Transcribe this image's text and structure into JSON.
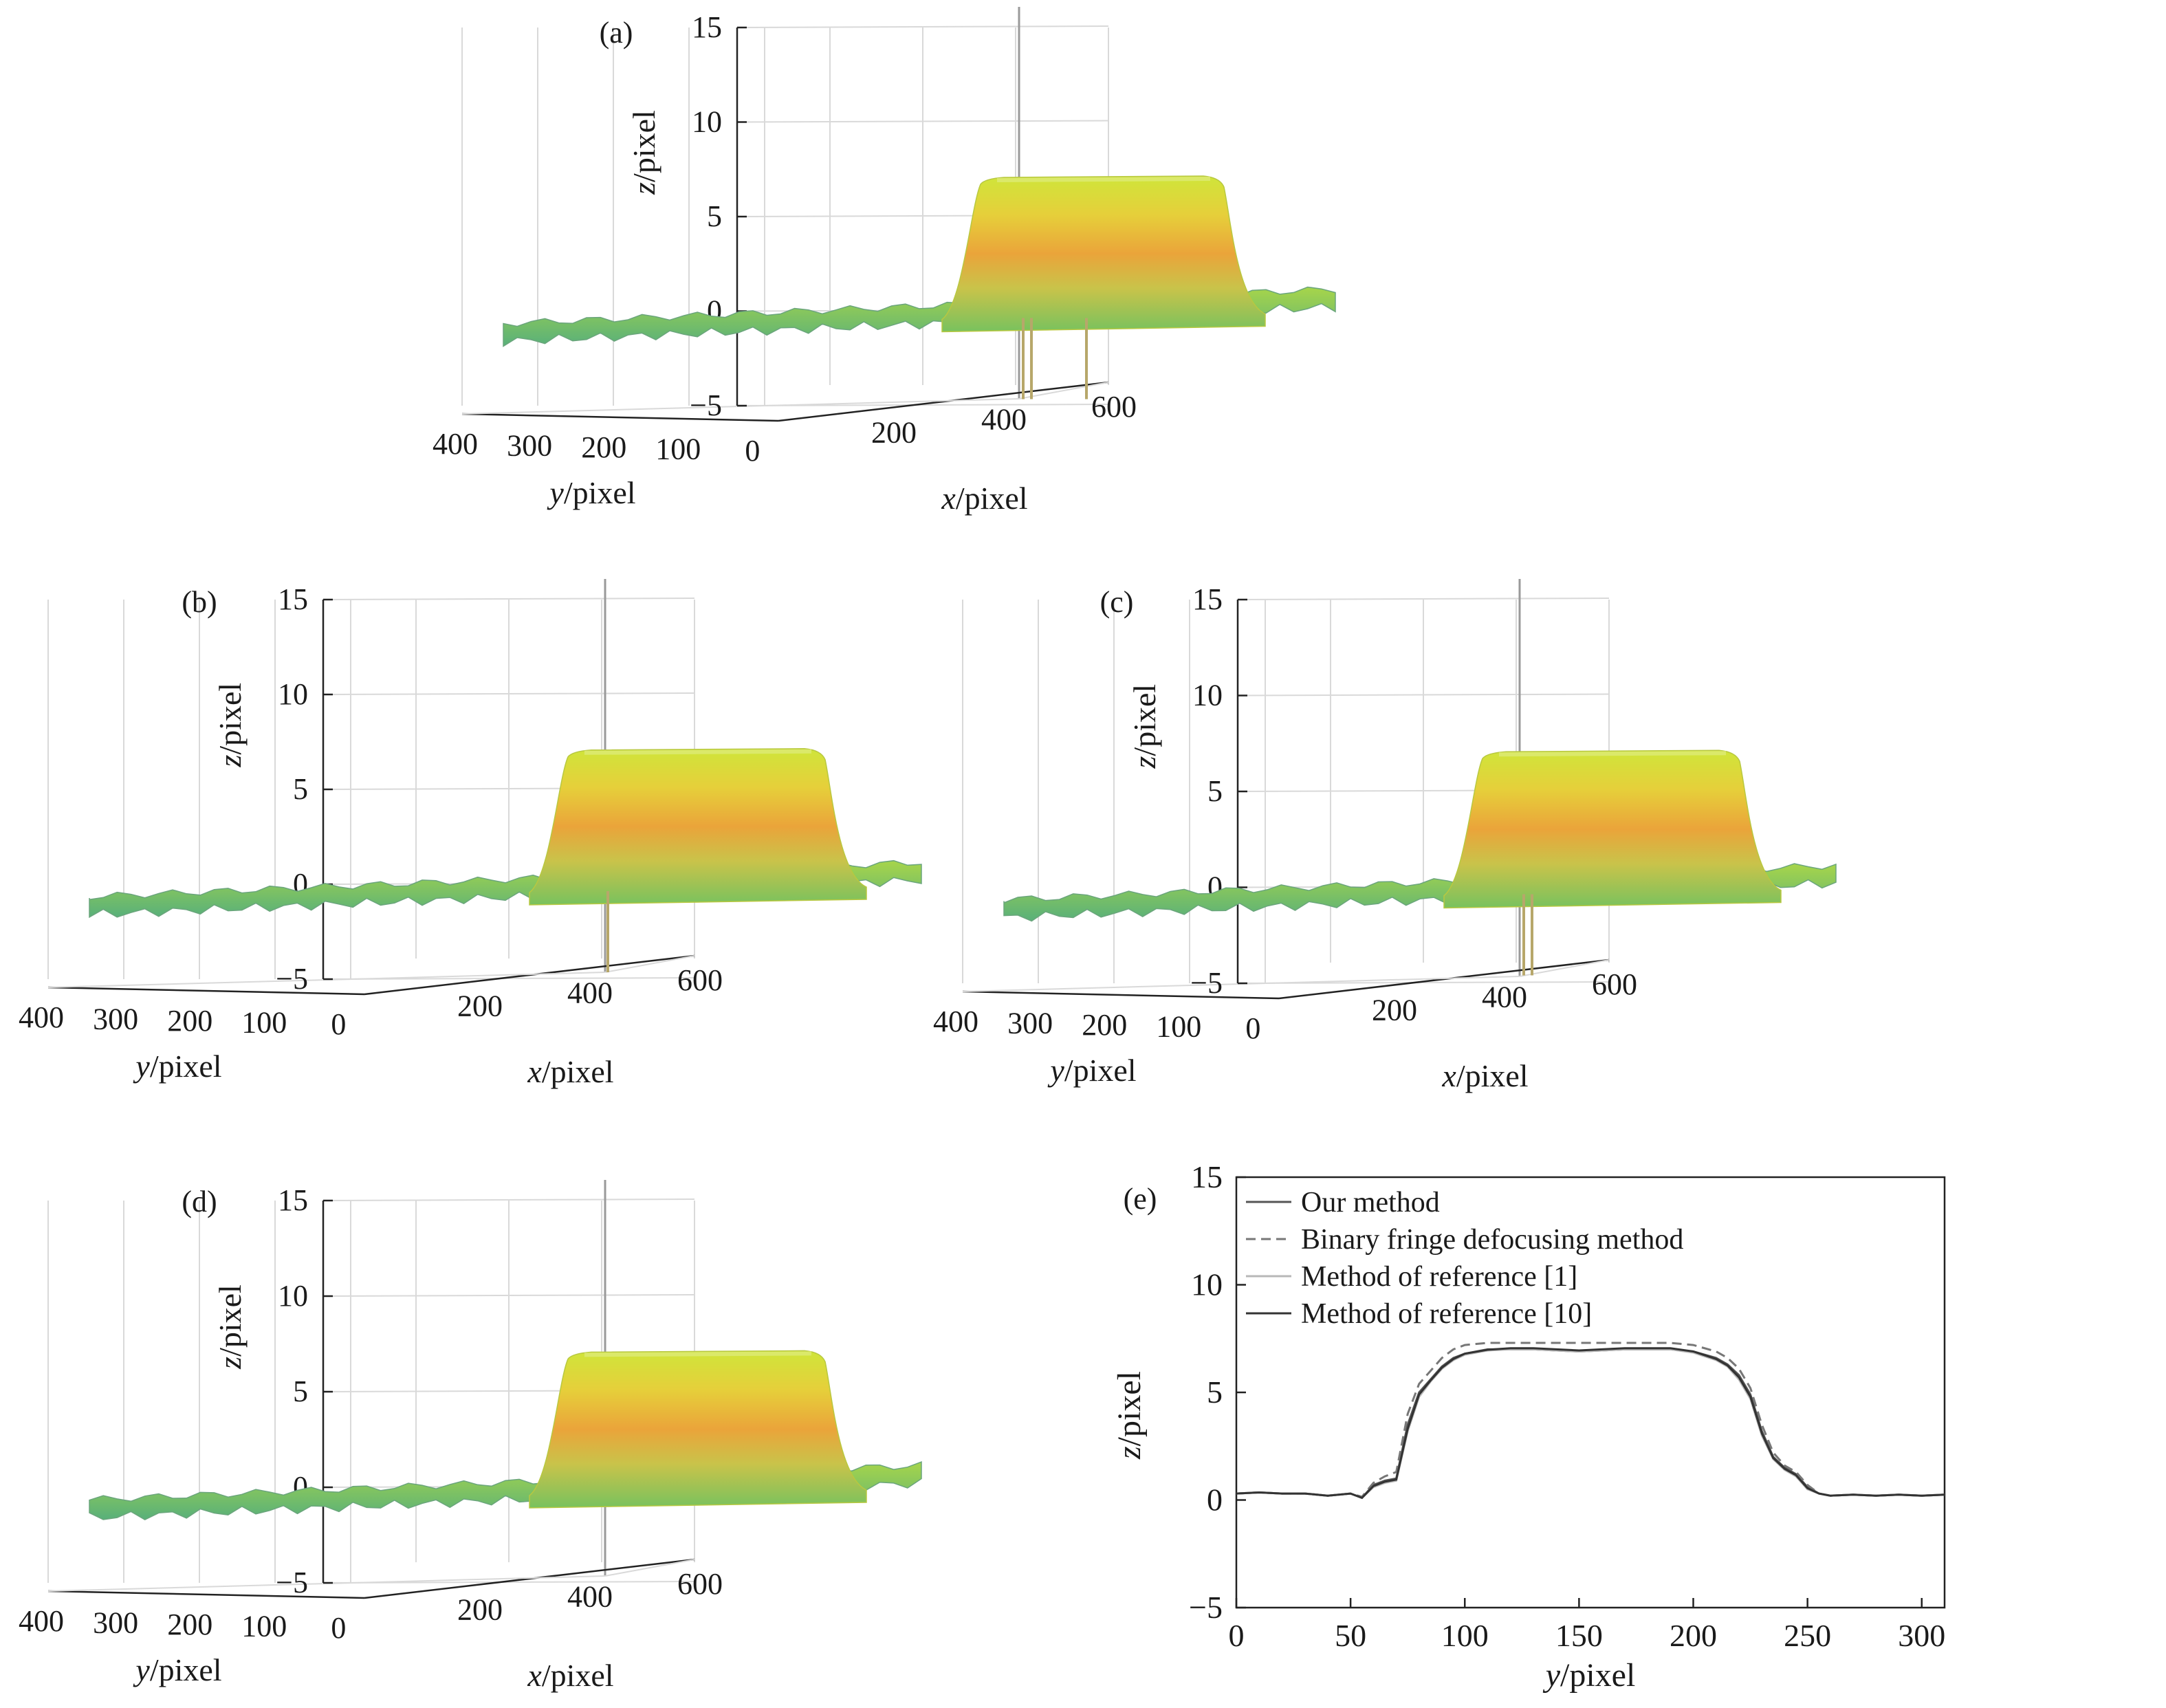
{
  "figure": {
    "colors": {
      "axis": "#222222",
      "grid": "#d9d9d9",
      "surface_top": "#c6e13a",
      "surface_mid": "#e9a33a",
      "surface_low": "#8fcf54",
      "surface_base": "#6fbf70"
    }
  },
  "chart_data": [
    {
      "panel": "(a)",
      "type": "surface",
      "zlabel": "z/pixel",
      "ylabel": "y/pixel",
      "xlabel": "x/pixel",
      "zticks": [
        "15",
        "10",
        "5",
        "0",
        "−5"
      ],
      "yticks": [
        "400",
        "300",
        "200",
        "100",
        "0"
      ],
      "xticks": [
        "200",
        "400",
        "600"
      ],
      "zlim": [
        -5,
        15
      ],
      "ylim": [
        0,
        400
      ],
      "xlim": [
        0,
        600
      ],
      "plateau_height": 7
    },
    {
      "panel": "(b)",
      "type": "surface",
      "zlabel": "z/pixel",
      "ylabel": "y/pixel",
      "xlabel": "x/pixel",
      "zticks": [
        "15",
        "10",
        "5",
        "0",
        "−5"
      ],
      "yticks": [
        "400",
        "300",
        "200",
        "100",
        "0"
      ],
      "xticks": [
        "200",
        "400",
        "600"
      ],
      "zlim": [
        -5,
        15
      ],
      "ylim": [
        0,
        400
      ],
      "xlim": [
        0,
        600
      ],
      "plateau_height": 7
    },
    {
      "panel": "(c)",
      "type": "surface",
      "zlabel": "z/pixel",
      "ylabel": "y/pixel",
      "xlabel": "x/pixel",
      "zticks": [
        "15",
        "10",
        "5",
        "0",
        "−5"
      ],
      "yticks": [
        "400",
        "300",
        "200",
        "100",
        "0"
      ],
      "xticks": [
        "200",
        "400",
        "600"
      ],
      "zlim": [
        -5,
        15
      ],
      "ylim": [
        0,
        400
      ],
      "xlim": [
        0,
        600
      ],
      "plateau_height": 7
    },
    {
      "panel": "(d)",
      "type": "surface",
      "zlabel": "z/pixel",
      "ylabel": "y/pixel",
      "xlabel": "x/pixel",
      "zticks": [
        "15",
        "10",
        "5",
        "0",
        "−5"
      ],
      "yticks": [
        "400",
        "300",
        "200",
        "100",
        "0"
      ],
      "xticks": [
        "200",
        "400",
        "600"
      ],
      "zlim": [
        -5,
        15
      ],
      "ylim": [
        0,
        400
      ],
      "xlim": [
        0,
        600
      ],
      "plateau_height": 7
    },
    {
      "panel": "(e)",
      "type": "line",
      "xlabel": "y/pixel",
      "ylabel": "z/pixel",
      "xlim": [
        0,
        310
      ],
      "ylim": [
        -5,
        15
      ],
      "xticks": [
        "0",
        "50",
        "100",
        "150",
        "200",
        "250",
        "300"
      ],
      "yticks": [
        "15",
        "10",
        "5",
        "0",
        "−5"
      ],
      "legend_position": "top-left",
      "x": [
        0,
        10,
        20,
        30,
        40,
        50,
        55,
        60,
        65,
        70,
        75,
        80,
        85,
        90,
        95,
        100,
        110,
        120,
        130,
        140,
        150,
        160,
        170,
        180,
        190,
        200,
        210,
        215,
        220,
        225,
        230,
        235,
        240,
        245,
        250,
        255,
        260,
        270,
        280,
        290,
        300,
        310
      ],
      "series": [
        {
          "name": "Our method",
          "style": "solid",
          "color": "#555555",
          "values": [
            0.3,
            0.35,
            0.3,
            0.3,
            0.2,
            0.3,
            0.1,
            0.7,
            0.9,
            1.0,
            3.5,
            5.0,
            5.6,
            6.2,
            6.6,
            6.8,
            7.0,
            7.0,
            7.0,
            6.95,
            6.9,
            6.95,
            7.0,
            7.0,
            7.0,
            6.9,
            6.6,
            6.3,
            5.8,
            4.9,
            3.2,
            2.0,
            1.5,
            1.2,
            0.6,
            0.3,
            0.2,
            0.25,
            0.2,
            0.25,
            0.2,
            0.25
          ]
        },
        {
          "name": "Binary fringe defocusing method",
          "style": "dashed",
          "color": "#777777",
          "values": [
            0.3,
            0.35,
            0.3,
            0.3,
            0.2,
            0.3,
            0.15,
            0.8,
            1.1,
            1.3,
            4.0,
            5.4,
            6.0,
            6.6,
            7.0,
            7.2,
            7.3,
            7.3,
            7.3,
            7.3,
            7.3,
            7.3,
            7.3,
            7.3,
            7.3,
            7.2,
            6.9,
            6.6,
            6.1,
            5.2,
            3.5,
            2.2,
            1.6,
            1.3,
            0.7,
            0.3,
            0.2,
            0.25,
            0.2,
            0.25,
            0.2,
            0.25
          ]
        },
        {
          "name": "Method of reference [1]",
          "style": "solid",
          "color": "#b8b8b8",
          "values": [
            0.3,
            0.35,
            0.3,
            0.3,
            0.2,
            0.3,
            0.1,
            0.6,
            0.8,
            0.9,
            3.2,
            4.8,
            5.5,
            6.1,
            6.5,
            6.75,
            6.95,
            7.0,
            7.0,
            6.95,
            6.9,
            6.95,
            7.0,
            7.0,
            7.0,
            6.85,
            6.5,
            6.2,
            5.6,
            4.7,
            3.0,
            1.9,
            1.4,
            1.1,
            0.5,
            0.3,
            0.2,
            0.25,
            0.2,
            0.25,
            0.2,
            0.25
          ]
        },
        {
          "name": "Method of reference [10]",
          "style": "solid",
          "color": "#333333",
          "values": [
            0.3,
            0.35,
            0.3,
            0.3,
            0.2,
            0.3,
            0.1,
            0.65,
            0.85,
            0.95,
            3.3,
            4.9,
            5.55,
            6.15,
            6.55,
            6.8,
            6.98,
            7.05,
            7.05,
            7.0,
            6.95,
            7.0,
            7.05,
            7.05,
            7.05,
            6.9,
            6.55,
            6.25,
            5.7,
            4.8,
            3.1,
            1.95,
            1.45,
            1.15,
            0.55,
            0.3,
            0.2,
            0.25,
            0.2,
            0.25,
            0.2,
            0.25
          ]
        }
      ]
    }
  ]
}
